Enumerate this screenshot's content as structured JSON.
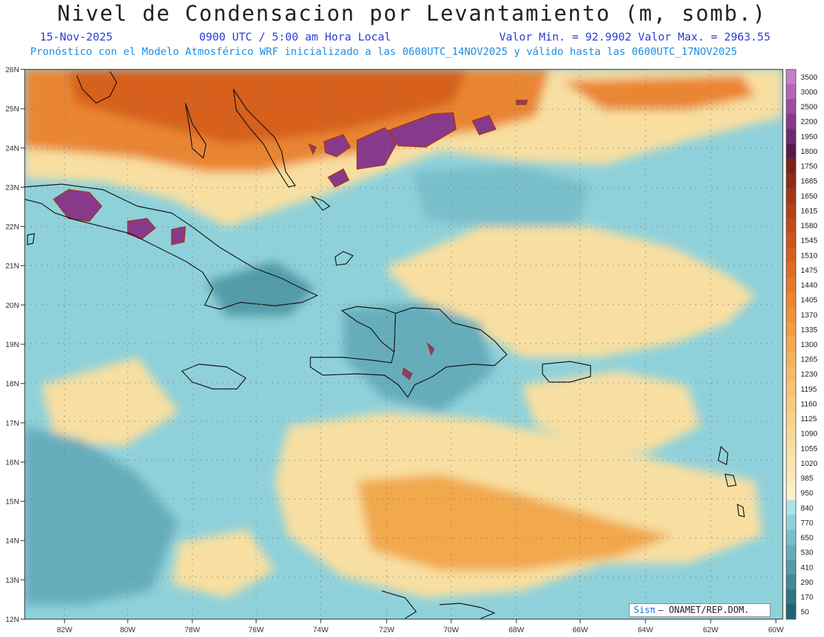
{
  "header": {
    "title": "Nivel de Condensacion por Levantamiento (m, somb.)",
    "date": "15-Nov-2025",
    "time": "0900 UTC / 5:00 am Hora Local",
    "stats": "Valor Min. = 92.9902  Valor Max. = 2963.55",
    "model_line": "Pronóstico con el Modelo Atmosférico WRF inicializado a las 0600UTC_14NOV2025 y válido hasta las  0600UTC_17NOV2025"
  },
  "axes": {
    "lat_labels": [
      "26N",
      "25N",
      "24N",
      "23N",
      "22N",
      "21N",
      "20N",
      "19N",
      "18N",
      "17N",
      "16N",
      "15N",
      "14N",
      "13N",
      "12N"
    ],
    "lon_labels": [
      "82W",
      "80W",
      "78W",
      "76W",
      "74W",
      "72W",
      "70W",
      "68W",
      "66W",
      "64W",
      "62W",
      "60W"
    ]
  },
  "colorbar": {
    "levels": [
      "3500",
      "3000",
      "2500",
      "2200",
      "1950",
      "1800",
      "1750",
      "1685",
      "1650",
      "1615",
      "1580",
      "1545",
      "1510",
      "1475",
      "1440",
      "1405",
      "1370",
      "1335",
      "1300",
      "1265",
      "1230",
      "1195",
      "1160",
      "1125",
      "1090",
      "1055",
      "1020",
      "985",
      "950",
      "840",
      "770",
      "650",
      "530",
      "410",
      "290",
      "170",
      "50"
    ],
    "colors": [
      "#c77fca",
      "#b266b8",
      "#9b4ea0",
      "#873a8c",
      "#6e2a72",
      "#571a4b",
      "#7a2418",
      "#8e2d16",
      "#a23814",
      "#b54213",
      "#c14c17",
      "#cc561b",
      "#d6611f",
      "#df6c24",
      "#e5782a",
      "#ea8531",
      "#ee9139",
      "#f09d43",
      "#f2a84e",
      "#f4b25a",
      "#f5bb66",
      "#f6c472",
      "#f6cc7e",
      "#f7d38a",
      "#f7d996",
      "#f8dfa1",
      "#f9e5ad",
      "#faeab8",
      "#fbefc3",
      "#a6e4ea",
      "#8fd1da",
      "#79bfcb",
      "#66adbc",
      "#529ba9",
      "#408996",
      "#2f7784",
      "#1f6672"
    ]
  },
  "credit": {
    "logo": "Sisπ",
    "text": "– ONAMET/REP.DOM."
  }
}
